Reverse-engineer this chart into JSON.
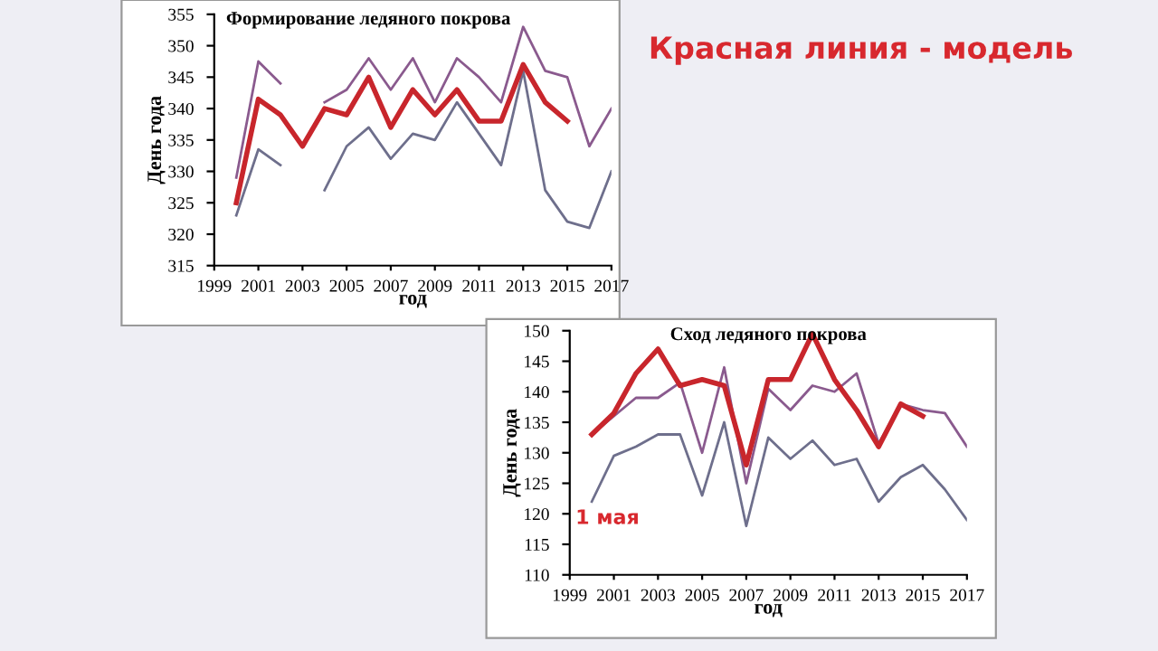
{
  "chart_data": [
    {
      "type": "line",
      "title": "Формирование ледяного покрова",
      "xlabel": "год",
      "ylabel": "День года",
      "x": [
        2000,
        2001,
        2002,
        2003,
        2004,
        2005,
        2006,
        2007,
        2008,
        2009,
        2010,
        2011,
        2012,
        2013,
        2014,
        2015,
        2016,
        2017
      ],
      "xlim": [
        1999,
        2017
      ],
      "xticks": [
        1999,
        2001,
        2003,
        2005,
        2007,
        2009,
        2011,
        2013,
        2015,
        2017
      ],
      "ylim": [
        315,
        355
      ],
      "yticks": [
        315,
        320,
        325,
        330,
        335,
        340,
        345,
        350,
        355
      ],
      "grid": false,
      "legend": false,
      "annotations": [
        "Красная линия - модель"
      ],
      "series": [
        {
          "color": "#8a5a8e",
          "values": [
            329,
            347.5,
            344,
            null,
            341,
            343,
            348,
            343,
            348,
            341,
            348,
            345,
            341,
            353,
            346,
            345,
            334,
            340
          ]
        },
        {
          "color": "#6e6f8c",
          "values": [
            323,
            333.5,
            331,
            null,
            327,
            334,
            337,
            332,
            336,
            335,
            341,
            336,
            331,
            346,
            327,
            322,
            321,
            330
          ]
        },
        {
          "color": "#c8262c",
          "values": [
            325,
            341.5,
            339,
            334,
            340,
            339,
            345,
            337,
            343,
            339,
            343,
            338,
            338,
            347,
            341,
            338,
            null,
            null
          ]
        }
      ]
    },
    {
      "type": "line",
      "title": "Сход ледяного покрова",
      "xlabel": "год",
      "ylabel": "День года",
      "x": [
        2000,
        2001,
        2002,
        2003,
        2004,
        2005,
        2006,
        2007,
        2008,
        2009,
        2010,
        2011,
        2012,
        2013,
        2014,
        2015,
        2016,
        2017
      ],
      "xlim": [
        1999,
        2017
      ],
      "xticks": [
        1999,
        2001,
        2003,
        2005,
        2007,
        2009,
        2011,
        2013,
        2015,
        2017
      ],
      "ylim": [
        110,
        150
      ],
      "yticks": [
        110,
        115,
        120,
        125,
        130,
        135,
        140,
        145,
        150
      ],
      "grid": false,
      "legend": false,
      "annotations": [
        "1 мая"
      ],
      "series": [
        {
          "color": "#8a5a8e",
          "values": [
            133,
            136,
            139,
            139,
            141.5,
            130,
            144,
            125,
            140.5,
            137,
            141,
            140,
            143,
            131.5,
            138,
            137,
            136.5,
            131
          ]
        },
        {
          "color": "#6e6f8c",
          "values": [
            122,
            129.5,
            131,
            133,
            133,
            123,
            135,
            118,
            132.5,
            129,
            132,
            128,
            129,
            122,
            126,
            128,
            124,
            119
          ]
        },
        {
          "color": "#c8262c",
          "values": [
            133,
            136.5,
            143,
            147,
            141,
            142,
            141,
            128,
            142,
            142,
            149.5,
            142,
            137,
            131,
            138,
            136,
            null,
            null
          ]
        }
      ]
    }
  ]
}
